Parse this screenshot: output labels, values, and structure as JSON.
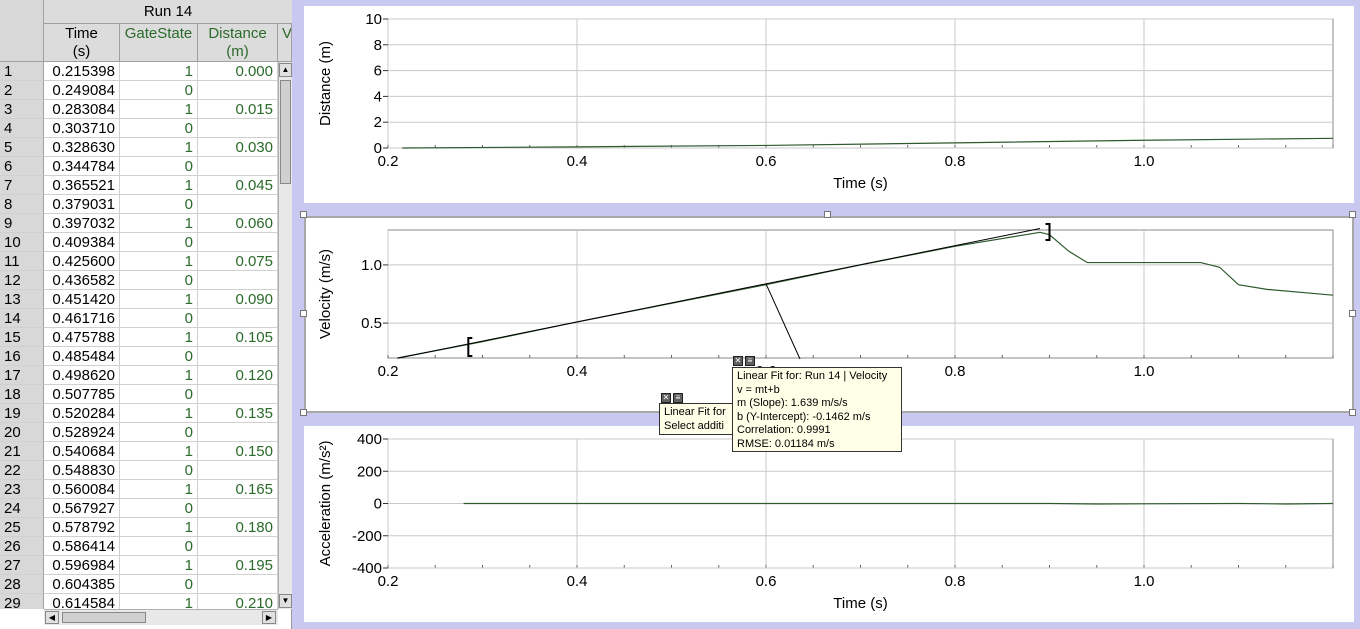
{
  "table": {
    "run_title": "Run 14",
    "columns": [
      {
        "line1": "Time",
        "line2": "(s)"
      },
      {
        "line1": "GateState",
        "line2": ""
      },
      {
        "line1": "Distance",
        "line2": "(m)"
      },
      {
        "line1": "V",
        "line2": ""
      }
    ],
    "rows": [
      {
        "n": "1",
        "time": "0.215398",
        "gate": "1",
        "dist": "0.000"
      },
      {
        "n": "2",
        "time": "0.249084",
        "gate": "0",
        "dist": ""
      },
      {
        "n": "3",
        "time": "0.283084",
        "gate": "1",
        "dist": "0.015"
      },
      {
        "n": "4",
        "time": "0.303710",
        "gate": "0",
        "dist": ""
      },
      {
        "n": "5",
        "time": "0.328630",
        "gate": "1",
        "dist": "0.030"
      },
      {
        "n": "6",
        "time": "0.344784",
        "gate": "0",
        "dist": ""
      },
      {
        "n": "7",
        "time": "0.365521",
        "gate": "1",
        "dist": "0.045"
      },
      {
        "n": "8",
        "time": "0.379031",
        "gate": "0",
        "dist": ""
      },
      {
        "n": "9",
        "time": "0.397032",
        "gate": "1",
        "dist": "0.060"
      },
      {
        "n": "10",
        "time": "0.409384",
        "gate": "0",
        "dist": ""
      },
      {
        "n": "11",
        "time": "0.425600",
        "gate": "1",
        "dist": "0.075"
      },
      {
        "n": "12",
        "time": "0.436582",
        "gate": "0",
        "dist": ""
      },
      {
        "n": "13",
        "time": "0.451420",
        "gate": "1",
        "dist": "0.090"
      },
      {
        "n": "14",
        "time": "0.461716",
        "gate": "0",
        "dist": ""
      },
      {
        "n": "15",
        "time": "0.475788",
        "gate": "1",
        "dist": "0.105"
      },
      {
        "n": "16",
        "time": "0.485484",
        "gate": "0",
        "dist": ""
      },
      {
        "n": "17",
        "time": "0.498620",
        "gate": "1",
        "dist": "0.120"
      },
      {
        "n": "18",
        "time": "0.507785",
        "gate": "0",
        "dist": ""
      },
      {
        "n": "19",
        "time": "0.520284",
        "gate": "1",
        "dist": "0.135"
      },
      {
        "n": "20",
        "time": "0.528924",
        "gate": "0",
        "dist": ""
      },
      {
        "n": "21",
        "time": "0.540684",
        "gate": "1",
        "dist": "0.150"
      },
      {
        "n": "22",
        "time": "0.548830",
        "gate": "0",
        "dist": ""
      },
      {
        "n": "23",
        "time": "0.560084",
        "gate": "1",
        "dist": "0.165"
      },
      {
        "n": "24",
        "time": "0.567927",
        "gate": "0",
        "dist": ""
      },
      {
        "n": "25",
        "time": "0.578792",
        "gate": "1",
        "dist": "0.180"
      },
      {
        "n": "26",
        "time": "0.586414",
        "gate": "0",
        "dist": ""
      },
      {
        "n": "27",
        "time": "0.596984",
        "gate": "1",
        "dist": "0.195"
      },
      {
        "n": "28",
        "time": "0.604385",
        "gate": "0",
        "dist": ""
      },
      {
        "n": "29",
        "time": "0.614584",
        "gate": "1",
        "dist": "0.210"
      }
    ]
  },
  "chart_data": [
    {
      "type": "line",
      "ylabel": "Distance (m)",
      "xlabel": "Time (s)",
      "xlim": [
        0.2,
        1.2
      ],
      "ylim": [
        0,
        10
      ],
      "x_ticks": [
        "0.2",
        "0.4",
        "0.6",
        "0.8",
        "1.0"
      ],
      "y_ticks": [
        "10",
        "8",
        "6",
        "4",
        "2",
        "0"
      ],
      "y_tick_values": [
        10,
        8,
        6,
        4,
        2,
        0
      ],
      "grid": true,
      "series": [
        {
          "x": [
            0.215,
            0.4,
            0.6,
            0.8,
            1.0,
            1.2
          ],
          "y": [
            0.0,
            0.09,
            0.2,
            0.4,
            0.6,
            0.75
          ]
        }
      ]
    },
    {
      "type": "line",
      "ylabel": "Velocity (m/s)",
      "xlabel": "",
      "xlim": [
        0.2,
        1.2
      ],
      "ylim": [
        0.2,
        1.3
      ],
      "x_ticks": [
        "0.2",
        "0.4",
        "0.6",
        "0.8",
        "1.0"
      ],
      "y_ticks": [
        "1.0",
        "0.5"
      ],
      "y_tick_values": [
        1.0,
        0.5
      ],
      "grid": true,
      "series": [
        {
          "x": [
            0.21,
            0.3,
            0.4,
            0.5,
            0.6,
            0.7,
            0.8,
            0.89,
            0.9,
            0.92,
            0.94,
            1.0,
            1.06,
            1.08,
            1.1,
            1.13,
            1.2
          ],
          "y": [
            0.2,
            0.34,
            0.51,
            0.67,
            0.83,
            1.0,
            1.16,
            1.28,
            1.26,
            1.12,
            1.02,
            1.02,
            1.02,
            0.98,
            0.83,
            0.79,
            0.74
          ]
        }
      ],
      "fit_line": {
        "x": [
          0.21,
          0.89
        ],
        "y": [
          0.198,
          1.313
        ]
      },
      "selection_range": [
        0.285,
        0.9
      ]
    },
    {
      "type": "line",
      "ylabel": "Acceleration (m/s²)",
      "xlabel": "Time (s)",
      "xlim": [
        0.2,
        1.2
      ],
      "ylim": [
        -400,
        400
      ],
      "x_ticks": [
        "0.2",
        "0.4",
        "0.6",
        "0.8",
        "1.0"
      ],
      "y_ticks": [
        "400",
        "200",
        "0",
        "-200",
        "-400"
      ],
      "y_tick_values": [
        400,
        200,
        0,
        -200,
        -400
      ],
      "grid": true,
      "series": [
        {
          "x": [
            0.28,
            0.6,
            0.9,
            0.95,
            1.1,
            1.15,
            1.2
          ],
          "y": [
            0,
            0,
            0,
            -3,
            0,
            -3,
            0
          ]
        }
      ]
    }
  ],
  "fit_box_main": {
    "lines": [
      "Linear Fit for: Run 14 | Velocity",
      "v = mt+b",
      "m (Slope): 1.639 m/s/s",
      "b (Y-Intercept): -0.1462 m/s",
      "Correlation: 0.9991",
      "RMSE: 0.01184 m/s"
    ]
  },
  "fit_box_behind": {
    "lines": [
      "Linear Fit for",
      "Select additi"
    ]
  },
  "icons": {
    "close": "close-icon",
    "menu": "menu-icon",
    "up": "scroll-up-arrow-icon",
    "down": "scroll-down-arrow-icon",
    "left": "scroll-left-arrow-icon",
    "right": "scroll-right-arrow-icon"
  },
  "colors": {
    "background": "#c8c8f0",
    "data_line": "#2e5a2e",
    "fit_line": "#000000",
    "grid": "#c8c8c8"
  }
}
